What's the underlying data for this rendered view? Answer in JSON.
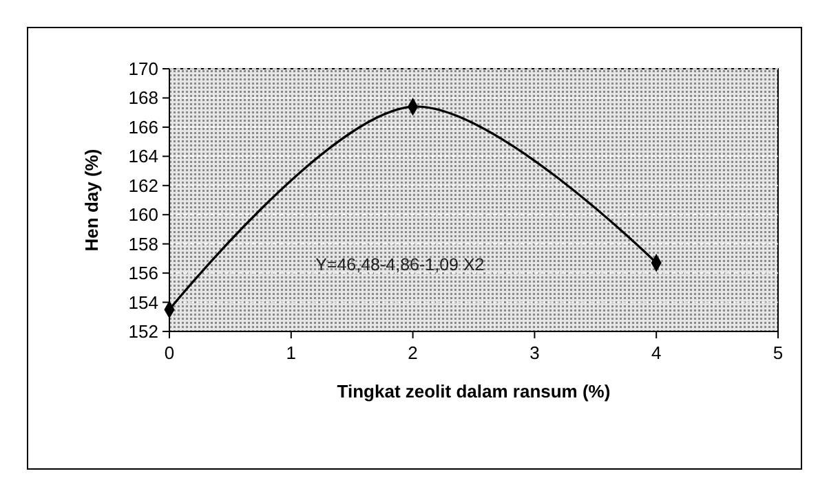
{
  "chart_data": {
    "type": "line",
    "xlabel": "Tingkat zeolit dalam ransum (%)",
    "ylabel": "Hen day (%)",
    "x": [
      0,
      2,
      4
    ],
    "series": [
      {
        "color": "#000000",
        "values": [
          153.5,
          167.4,
          156.7
        ]
      }
    ],
    "xlim": [
      0,
      5
    ],
    "xticks": [
      0,
      1,
      2,
      3,
      4,
      5
    ],
    "ylim": [
      152,
      170
    ],
    "yticks": [
      152,
      154,
      156,
      158,
      160,
      162,
      164,
      166,
      168,
      170
    ],
    "grid": "y",
    "marker": "diamond",
    "line_style": "solid",
    "annotations": [
      "Y=46,48-4,86-1,09 X2"
    ]
  }
}
